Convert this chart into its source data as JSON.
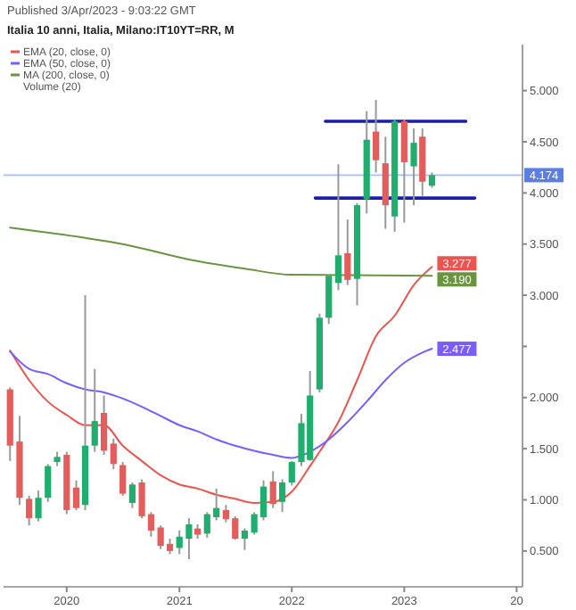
{
  "chart_data": {
    "type": "candlestick",
    "title": "Italia 10 anni, Italia, Milano:IT10YT=RR, M",
    "annotations": [
      "Published 3/Apr/2023 - 9:03:22 GMT",
      "Volume (20)"
    ],
    "x": [
      "2019-07",
      "2019-08",
      "2019-09",
      "2019-10",
      "2019-11",
      "2019-12",
      "2020-01",
      "2020-02",
      "2020-03",
      "2020-04",
      "2020-05",
      "2020-06",
      "2020-07",
      "2020-08",
      "2020-09",
      "2020-10",
      "2020-11",
      "2020-12",
      "2021-01",
      "2021-02",
      "2021-03",
      "2021-04",
      "2021-05",
      "2021-06",
      "2021-07",
      "2021-08",
      "2021-09",
      "2021-10",
      "2021-11",
      "2021-12",
      "2022-01",
      "2022-02",
      "2022-03",
      "2022-04",
      "2022-05",
      "2022-06",
      "2022-07",
      "2022-08",
      "2022-09",
      "2022-10",
      "2022-11",
      "2022-12",
      "2023-01",
      "2023-02",
      "2023-03",
      "2023-04"
    ],
    "ohlc": [
      [
        2.08,
        2.1,
        1.38,
        1.53
      ],
      [
        1.57,
        1.82,
        0.95,
        1.02
      ],
      [
        1.01,
        1.04,
        0.75,
        0.82
      ],
      [
        0.82,
        1.09,
        0.79,
        1.02
      ],
      [
        1.02,
        1.35,
        0.98,
        1.33
      ],
      [
        1.37,
        1.47,
        1.33,
        1.42
      ],
      [
        1.44,
        1.47,
        0.86,
        0.9
      ],
      [
        1.12,
        1.19,
        0.9,
        0.92
      ],
      [
        0.95,
        3.0,
        0.9,
        1.53
      ],
      [
        1.53,
        2.28,
        1.47,
        1.77
      ],
      [
        1.85,
        2.02,
        1.44,
        1.48
      ],
      [
        1.55,
        1.6,
        1.3,
        1.35
      ],
      [
        1.34,
        1.37,
        1.04,
        1.06
      ],
      [
        0.97,
        1.17,
        0.92,
        1.15
      ],
      [
        1.17,
        1.2,
        0.82,
        0.84
      ],
      [
        0.86,
        0.88,
        0.64,
        0.7
      ],
      [
        0.73,
        0.75,
        0.52,
        0.55
      ],
      [
        0.57,
        0.62,
        0.47,
        0.5
      ],
      [
        0.53,
        0.7,
        0.47,
        0.64
      ],
      [
        0.62,
        0.82,
        0.42,
        0.76
      ],
      [
        0.72,
        0.76,
        0.62,
        0.66
      ],
      [
        0.67,
        0.88,
        0.63,
        0.86
      ],
      [
        0.83,
        1.11,
        0.8,
        0.92
      ],
      [
        0.9,
        0.95,
        0.78,
        0.81
      ],
      [
        0.82,
        0.84,
        0.61,
        0.62
      ],
      [
        0.62,
        0.72,
        0.51,
        0.7
      ],
      [
        0.68,
        0.88,
        0.66,
        0.86
      ],
      [
        0.83,
        1.19,
        0.8,
        1.13
      ],
      [
        1.18,
        1.28,
        0.92,
        0.96
      ],
      [
        0.98,
        1.2,
        0.88,
        1.17
      ],
      [
        1.17,
        1.38,
        1.14,
        1.37
      ],
      [
        1.37,
        1.84,
        1.33,
        1.75
      ],
      [
        1.39,
        2.26,
        1.38,
        2.02
      ],
      [
        2.08,
        2.82,
        2.05,
        2.78
      ],
      [
        2.78,
        3.2,
        2.72,
        3.19
      ],
      [
        3.12,
        4.28,
        3.05,
        3.39
      ],
      [
        3.41,
        3.74,
        3.1,
        3.15
      ],
      [
        3.16,
        3.9,
        2.9,
        3.88
      ],
      [
        3.94,
        4.8,
        3.8,
        4.52
      ],
      [
        4.6,
        4.91,
        4.2,
        4.32
      ],
      [
        4.29,
        4.55,
        3.65,
        3.88
      ],
      [
        3.77,
        4.72,
        3.62,
        4.7
      ],
      [
        4.7,
        4.72,
        3.71,
        4.3
      ],
      [
        4.26,
        4.63,
        3.88,
        4.49
      ],
      [
        4.55,
        4.63,
        3.97,
        4.11
      ],
      [
        4.07,
        4.2,
        4.05,
        4.174
      ]
    ],
    "colors": [
      "#e35d5d",
      "#e35d5d",
      "#e35d5d",
      "#1fae6e",
      "#1fae6e",
      "#1fae6e",
      "#e35d5d",
      "#e35d5d",
      "#1fae6e",
      "#1fae6e",
      "#e35d5d",
      "#e35d5d",
      "#e35d5d",
      "#1fae6e",
      "#e35d5d",
      "#e35d5d",
      "#e35d5d",
      "#e35d5d",
      "#1fae6e",
      "#1fae6e",
      "#e35d5d",
      "#1fae6e",
      "#1fae6e",
      "#e35d5d",
      "#e35d5d",
      "#1fae6e",
      "#1fae6e",
      "#1fae6e",
      "#e35d5d",
      "#1fae6e",
      "#1fae6e",
      "#1fae6e",
      "#1fae6e",
      "#1fae6e",
      "#1fae6e",
      "#1fae6e",
      "#e35d5d",
      "#1fae6e",
      "#1fae6e",
      "#e35d5d",
      "#e35d5d",
      "#1fae6e",
      "#e35d5d",
      "#1fae6e",
      "#e35d5d",
      "#1fae6e"
    ],
    "series": [
      {
        "type": "line",
        "name": "EMA (20, close, 0)",
        "color": "#ef5350",
        "x": [
          "2019-07",
          "2019-09",
          "2019-11",
          "2020-01",
          "2020-03",
          "2020-05",
          "2020-07",
          "2020-09",
          "2020-11",
          "2021-01",
          "2021-03",
          "2021-05",
          "2021-07",
          "2021-09",
          "2021-11",
          "2022-01",
          "2022-03",
          "2022-04",
          "2022-06",
          "2022-08",
          "2022-10",
          "2022-12",
          "2023-02",
          "2023-04"
        ],
        "values": [
          2.46,
          2.17,
          1.96,
          1.83,
          1.73,
          1.73,
          1.53,
          1.38,
          1.24,
          1.15,
          1.11,
          1.05,
          1.01,
          0.97,
          0.98,
          1.08,
          1.33,
          1.47,
          1.76,
          2.17,
          2.6,
          2.8,
          3.1,
          3.277
        ],
        "value_labels": [
          null,
          null,
          null,
          null,
          null,
          null,
          null,
          null,
          null,
          null,
          null,
          null,
          null,
          null,
          null,
          null,
          null,
          null,
          null,
          null,
          null,
          null,
          null,
          "3.277"
        ]
      },
      {
        "type": "line",
        "name": "EMA (50, close, 0)",
        "color": "#7b5cff",
        "x": [
          "2019-07",
          "2019-09",
          "2019-11",
          "2020-01",
          "2020-03",
          "2020-05",
          "2020-07",
          "2020-09",
          "2020-11",
          "2021-01",
          "2021-03",
          "2021-05",
          "2021-07",
          "2021-09",
          "2021-11",
          "2022-01",
          "2022-03",
          "2022-05",
          "2022-07",
          "2022-09",
          "2022-11",
          "2023-01",
          "2023-03",
          "2023-04"
        ],
        "values": [
          2.45,
          2.28,
          2.23,
          2.14,
          2.08,
          2.05,
          1.99,
          1.91,
          1.82,
          1.73,
          1.67,
          1.59,
          1.53,
          1.48,
          1.44,
          1.41,
          1.47,
          1.59,
          1.76,
          1.96,
          2.17,
          2.34,
          2.44,
          2.477
        ],
        "value_labels": [
          null,
          null,
          null,
          null,
          null,
          null,
          null,
          null,
          null,
          null,
          null,
          null,
          null,
          null,
          null,
          null,
          null,
          null,
          null,
          null,
          null,
          null,
          null,
          "2.477"
        ]
      },
      {
        "type": "line",
        "name": "MA (200, close, 0)",
        "color": "#6b9440",
        "x": [
          "2019-07",
          "2020-03",
          "2020-07",
          "2021-02",
          "2021-08",
          "2022-01",
          "2023-04"
        ],
        "values": [
          3.66,
          3.56,
          3.5,
          3.35,
          3.26,
          3.2,
          3.19
        ],
        "value_labels": [
          null,
          null,
          null,
          null,
          null,
          null,
          "3.190"
        ]
      },
      {
        "type": "line",
        "color": "#1c1cb0",
        "x": [
          "2022-04-20",
          "2023-07-20"
        ],
        "values": [
          4.7,
          4.7
        ]
      },
      {
        "type": "line",
        "color": "#1c1cb0",
        "x": [
          "2022-03-18",
          "2023-08-18"
        ],
        "values": [
          3.95,
          3.95
        ]
      }
    ],
    "ref_lines": [
      {
        "axis": "y",
        "value": 4.174,
        "label": "4.174",
        "color": "#5b7ee5"
      }
    ],
    "xlim": [
      "2019-06-10",
      "2024-01-20"
    ],
    "xticks": [
      {
        "value": "2020",
        "label": "2020"
      },
      {
        "value": "2021",
        "label": "2021"
      },
      {
        "value": "2022",
        "label": "2022"
      },
      {
        "value": "2023",
        "label": "2023"
      },
      {
        "value": "2024",
        "label": "20"
      }
    ],
    "ylim": [
      0.15,
      5.45
    ],
    "yticks": [
      {
        "value": 0.5,
        "label": "0.500"
      },
      {
        "value": 1,
        "label": "1.000"
      },
      {
        "value": 1.5,
        "label": "1.500"
      },
      {
        "value": 2,
        "label": "2.000"
      },
      {
        "value": 2.5,
        "label": null
      },
      {
        "value": 3,
        "label": "3.000"
      },
      {
        "value": 3.5,
        "label": "3.500"
      },
      {
        "value": 4,
        "label": "4.000"
      },
      {
        "value": 4.5,
        "label": "4.500"
      },
      {
        "value": 5,
        "label": "5.000"
      }
    ],
    "grid": false,
    "legend": "top left",
    "marker": "none",
    "line_style": "solid"
  }
}
